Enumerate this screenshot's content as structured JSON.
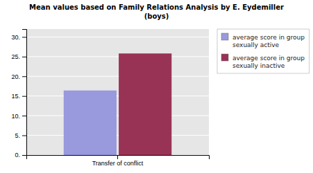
{
  "chart_data": {
    "type": "bar",
    "title": "Mean values based on Family Relations Analysis by E. Eydemiller\n(boys)",
    "categories": [
      "Transfer of conflict"
    ],
    "series": [
      {
        "name": "average score in group\nsexually active",
        "color": "#9999dd",
        "values": [
          16.4
        ]
      },
      {
        "name": "average score in group\nsexually inactive",
        "color": "#993355",
        "values": [
          25.8
        ]
      }
    ],
    "ylim": [
      0,
      32
    ],
    "yticks": [
      {
        "value": 0,
        "label": "0."
      },
      {
        "value": 5,
        "label": "5."
      },
      {
        "value": 10,
        "label": "10."
      },
      {
        "value": 15,
        "label": "15."
      },
      {
        "value": 20,
        "label": "20."
      },
      {
        "value": 25,
        "label": "25."
      },
      {
        "value": 30,
        "label": "30."
      }
    ],
    "grid": true,
    "legend": "right"
  }
}
